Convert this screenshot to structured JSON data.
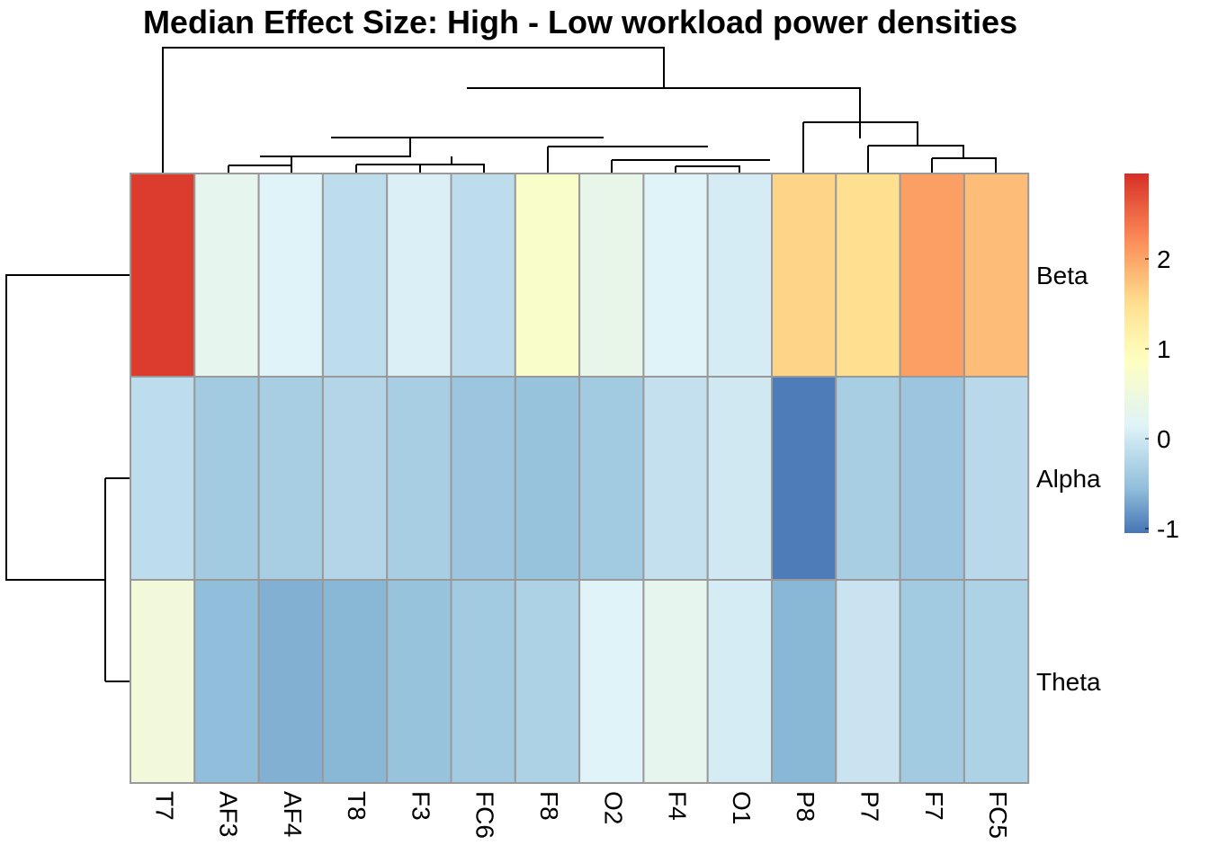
{
  "chart_data": {
    "type": "heatmap",
    "title": "Median Effect Size: High - Low workload power densities",
    "columns": [
      "T7",
      "AF3",
      "AF4",
      "T8",
      "F3",
      "FC6",
      "F8",
      "O2",
      "F4",
      "O1",
      "P8",
      "P7",
      "F7",
      "FC5"
    ],
    "rows": [
      "Beta",
      "Alpha",
      "Theta"
    ],
    "values": [
      [
        2.85,
        0.3,
        0.15,
        -0.15,
        0.1,
        -0.15,
        0.75,
        0.35,
        0.15,
        0.05,
        1.6,
        1.5,
        2.05,
        1.8
      ],
      [
        -0.15,
        -0.4,
        -0.35,
        -0.25,
        -0.35,
        -0.45,
        -0.5,
        -0.4,
        -0.1,
        0.0,
        -1.0,
        -0.35,
        -0.45,
        -0.2
      ],
      [
        0.55,
        -0.55,
        -0.65,
        -0.6,
        -0.5,
        -0.4,
        -0.3,
        0.15,
        0.3,
        0.05,
        -0.6,
        -0.05,
        -0.4,
        -0.3
      ]
    ],
    "legend": {
      "position": "right",
      "range": [
        -1.05,
        2.95
      ],
      "ticks": [
        -1,
        0,
        1,
        2
      ],
      "tick_labels": [
        "-1",
        "0",
        "1",
        "2"
      ]
    },
    "color_scale": {
      "colors": [
        "#4575b4",
        "#91bfdb",
        "#e0f3f8",
        "#ffffbf",
        "#fee090",
        "#fc8d59",
        "#d73027"
      ],
      "stops": [
        -1.05,
        -0.55,
        0.15,
        0.9,
        1.5,
        2.2,
        2.95
      ]
    },
    "cell_border_color": "#999999",
    "column_dendrogram": true,
    "row_dendrogram": true
  }
}
